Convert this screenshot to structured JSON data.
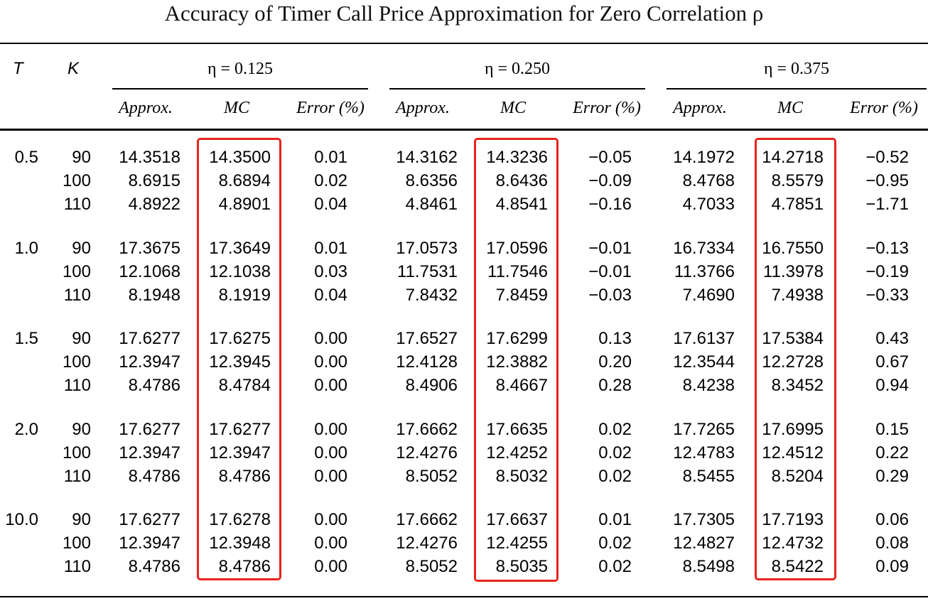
{
  "title": "Accuracy of Timer Call Price Approximation for Zero Correlation ρ",
  "headers": {
    "T": "T",
    "K": "K",
    "etas": [
      "η = 0.125",
      "η = 0.250",
      "η = 0.375"
    ],
    "sub": [
      "Approx.",
      "MC",
      "Error (%)"
    ]
  },
  "groups": [
    {
      "T": "0.5",
      "rows": [
        {
          "K": "90",
          "vals": [
            [
              "14.3518",
              "14.3500",
              "0.01"
            ],
            [
              "14.3162",
              "14.3236",
              "−0.05"
            ],
            [
              "14.1972",
              "14.2718",
              "−0.52"
            ]
          ]
        },
        {
          "K": "100",
          "vals": [
            [
              "8.6915",
              "8.6894",
              "0.02"
            ],
            [
              "8.6356",
              "8.6436",
              "−0.09"
            ],
            [
              "8.4768",
              "8.5579",
              "−0.95"
            ]
          ]
        },
        {
          "K": "110",
          "vals": [
            [
              "4.8922",
              "4.8901",
              "0.04"
            ],
            [
              "4.8461",
              "4.8541",
              "−0.16"
            ],
            [
              "4.7033",
              "4.7851",
              "−1.71"
            ]
          ]
        }
      ]
    },
    {
      "T": "1.0",
      "rows": [
        {
          "K": "90",
          "vals": [
            [
              "17.3675",
              "17.3649",
              "0.01"
            ],
            [
              "17.0573",
              "17.0596",
              "−0.01"
            ],
            [
              "16.7334",
              "16.7550",
              "−0.13"
            ]
          ]
        },
        {
          "K": "100",
          "vals": [
            [
              "12.1068",
              "12.1038",
              "0.03"
            ],
            [
              "11.7531",
              "11.7546",
              "−0.01"
            ],
            [
              "11.3766",
              "11.3978",
              "−0.19"
            ]
          ]
        },
        {
          "K": "110",
          "vals": [
            [
              "8.1948",
              "8.1919",
              "0.04"
            ],
            [
              "7.8432",
              "7.8459",
              "−0.03"
            ],
            [
              "7.4690",
              "7.4938",
              "−0.33"
            ]
          ]
        }
      ]
    },
    {
      "T": "1.5",
      "rows": [
        {
          "K": "90",
          "vals": [
            [
              "17.6277",
              "17.6275",
              "0.00"
            ],
            [
              "17.6527",
              "17.6299",
              "0.13"
            ],
            [
              "17.6137",
              "17.5384",
              "0.43"
            ]
          ]
        },
        {
          "K": "100",
          "vals": [
            [
              "12.3947",
              "12.3945",
              "0.00"
            ],
            [
              "12.4128",
              "12.3882",
              "0.20"
            ],
            [
              "12.3544",
              "12.2728",
              "0.67"
            ]
          ]
        },
        {
          "K": "110",
          "vals": [
            [
              "8.4786",
              "8.4784",
              "0.00"
            ],
            [
              "8.4906",
              "8.4667",
              "0.28"
            ],
            [
              "8.4238",
              "8.3452",
              "0.94"
            ]
          ]
        }
      ]
    },
    {
      "T": "2.0",
      "rows": [
        {
          "K": "90",
          "vals": [
            [
              "17.6277",
              "17.6277",
              "0.00"
            ],
            [
              "17.6662",
              "17.6635",
              "0.02"
            ],
            [
              "17.7265",
              "17.6995",
              "0.15"
            ]
          ]
        },
        {
          "K": "100",
          "vals": [
            [
              "12.3947",
              "12.3947",
              "0.00"
            ],
            [
              "12.4276",
              "12.4252",
              "0.02"
            ],
            [
              "12.4783",
              "12.4512",
              "0.22"
            ]
          ]
        },
        {
          "K": "110",
          "vals": [
            [
              "8.4786",
              "8.4786",
              "0.00"
            ],
            [
              "8.5052",
              "8.5032",
              "0.02"
            ],
            [
              "8.5455",
              "8.5204",
              "0.29"
            ]
          ]
        }
      ]
    },
    {
      "T": "10.0",
      "rows": [
        {
          "K": "90",
          "vals": [
            [
              "17.6277",
              "17.6278",
              "0.00"
            ],
            [
              "17.6662",
              "17.6637",
              "0.01"
            ],
            [
              "17.7305",
              "17.7193",
              "0.06"
            ]
          ]
        },
        {
          "K": "100",
          "vals": [
            [
              "12.3947",
              "12.3948",
              "0.00"
            ],
            [
              "12.4276",
              "12.4255",
              "0.02"
            ],
            [
              "12.4827",
              "12.4732",
              "0.08"
            ]
          ]
        },
        {
          "K": "110",
          "vals": [
            [
              "8.4786",
              "8.4786",
              "0.00"
            ],
            [
              "8.5052",
              "8.5035",
              "0.02"
            ],
            [
              "8.5498",
              "8.5422",
              "0.09"
            ]
          ]
        }
      ]
    }
  ],
  "highlight_color": "#e8231f",
  "highlighted_columns": [
    "MC"
  ]
}
